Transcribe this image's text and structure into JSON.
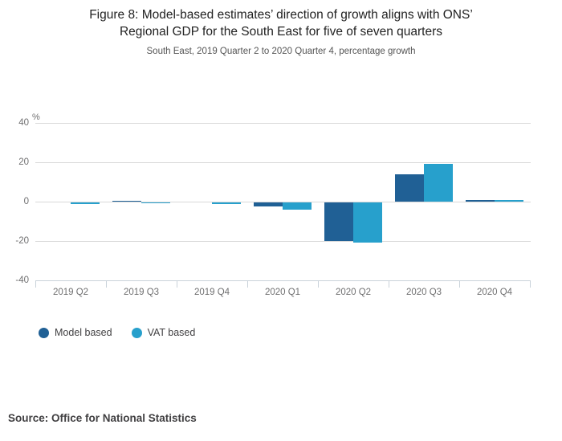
{
  "header": {
    "title": "Figure 8: Model-based estimates’ direction of growth aligns with ONS’\nRegional GDP for the South East for five of seven quarters",
    "subtitle": "South East, 2019 Quarter 2 to 2020 Quarter 4, percentage growth"
  },
  "chart_data": {
    "type": "bar",
    "title": "Figure 8: Model-based estimates’ direction of growth aligns with ONS’ Regional GDP for the South East for five of seven quarters",
    "subtitle": "South East, 2019 Quarter 2 to 2020 Quarter 4, percentage growth",
    "unit_label": "%",
    "categories": [
      "2019 Q2",
      "2019 Q3",
      "2019 Q4",
      "2020 Q1",
      "2020 Q2",
      "2020 Q3",
      "2020 Q4"
    ],
    "series": [
      {
        "name": "Model based",
        "color": "#206095",
        "values": [
          0,
          0.4,
          0,
          -1.9,
          -19.5,
          14,
          1
        ]
      },
      {
        "name": "VAT based",
        "color": "#27A0CC",
        "values": [
          -0.9,
          -0.3,
          -0.9,
          -3.8,
          -20.6,
          19.2,
          0.9
        ]
      }
    ],
    "y_ticks": [
      40,
      20,
      0,
      -20,
      -40
    ],
    "ylim": [
      -40,
      40
    ],
    "grid": true,
    "legend_position": "bottom-left"
  },
  "footer": {
    "source": "Source: Office for National Statistics"
  }
}
